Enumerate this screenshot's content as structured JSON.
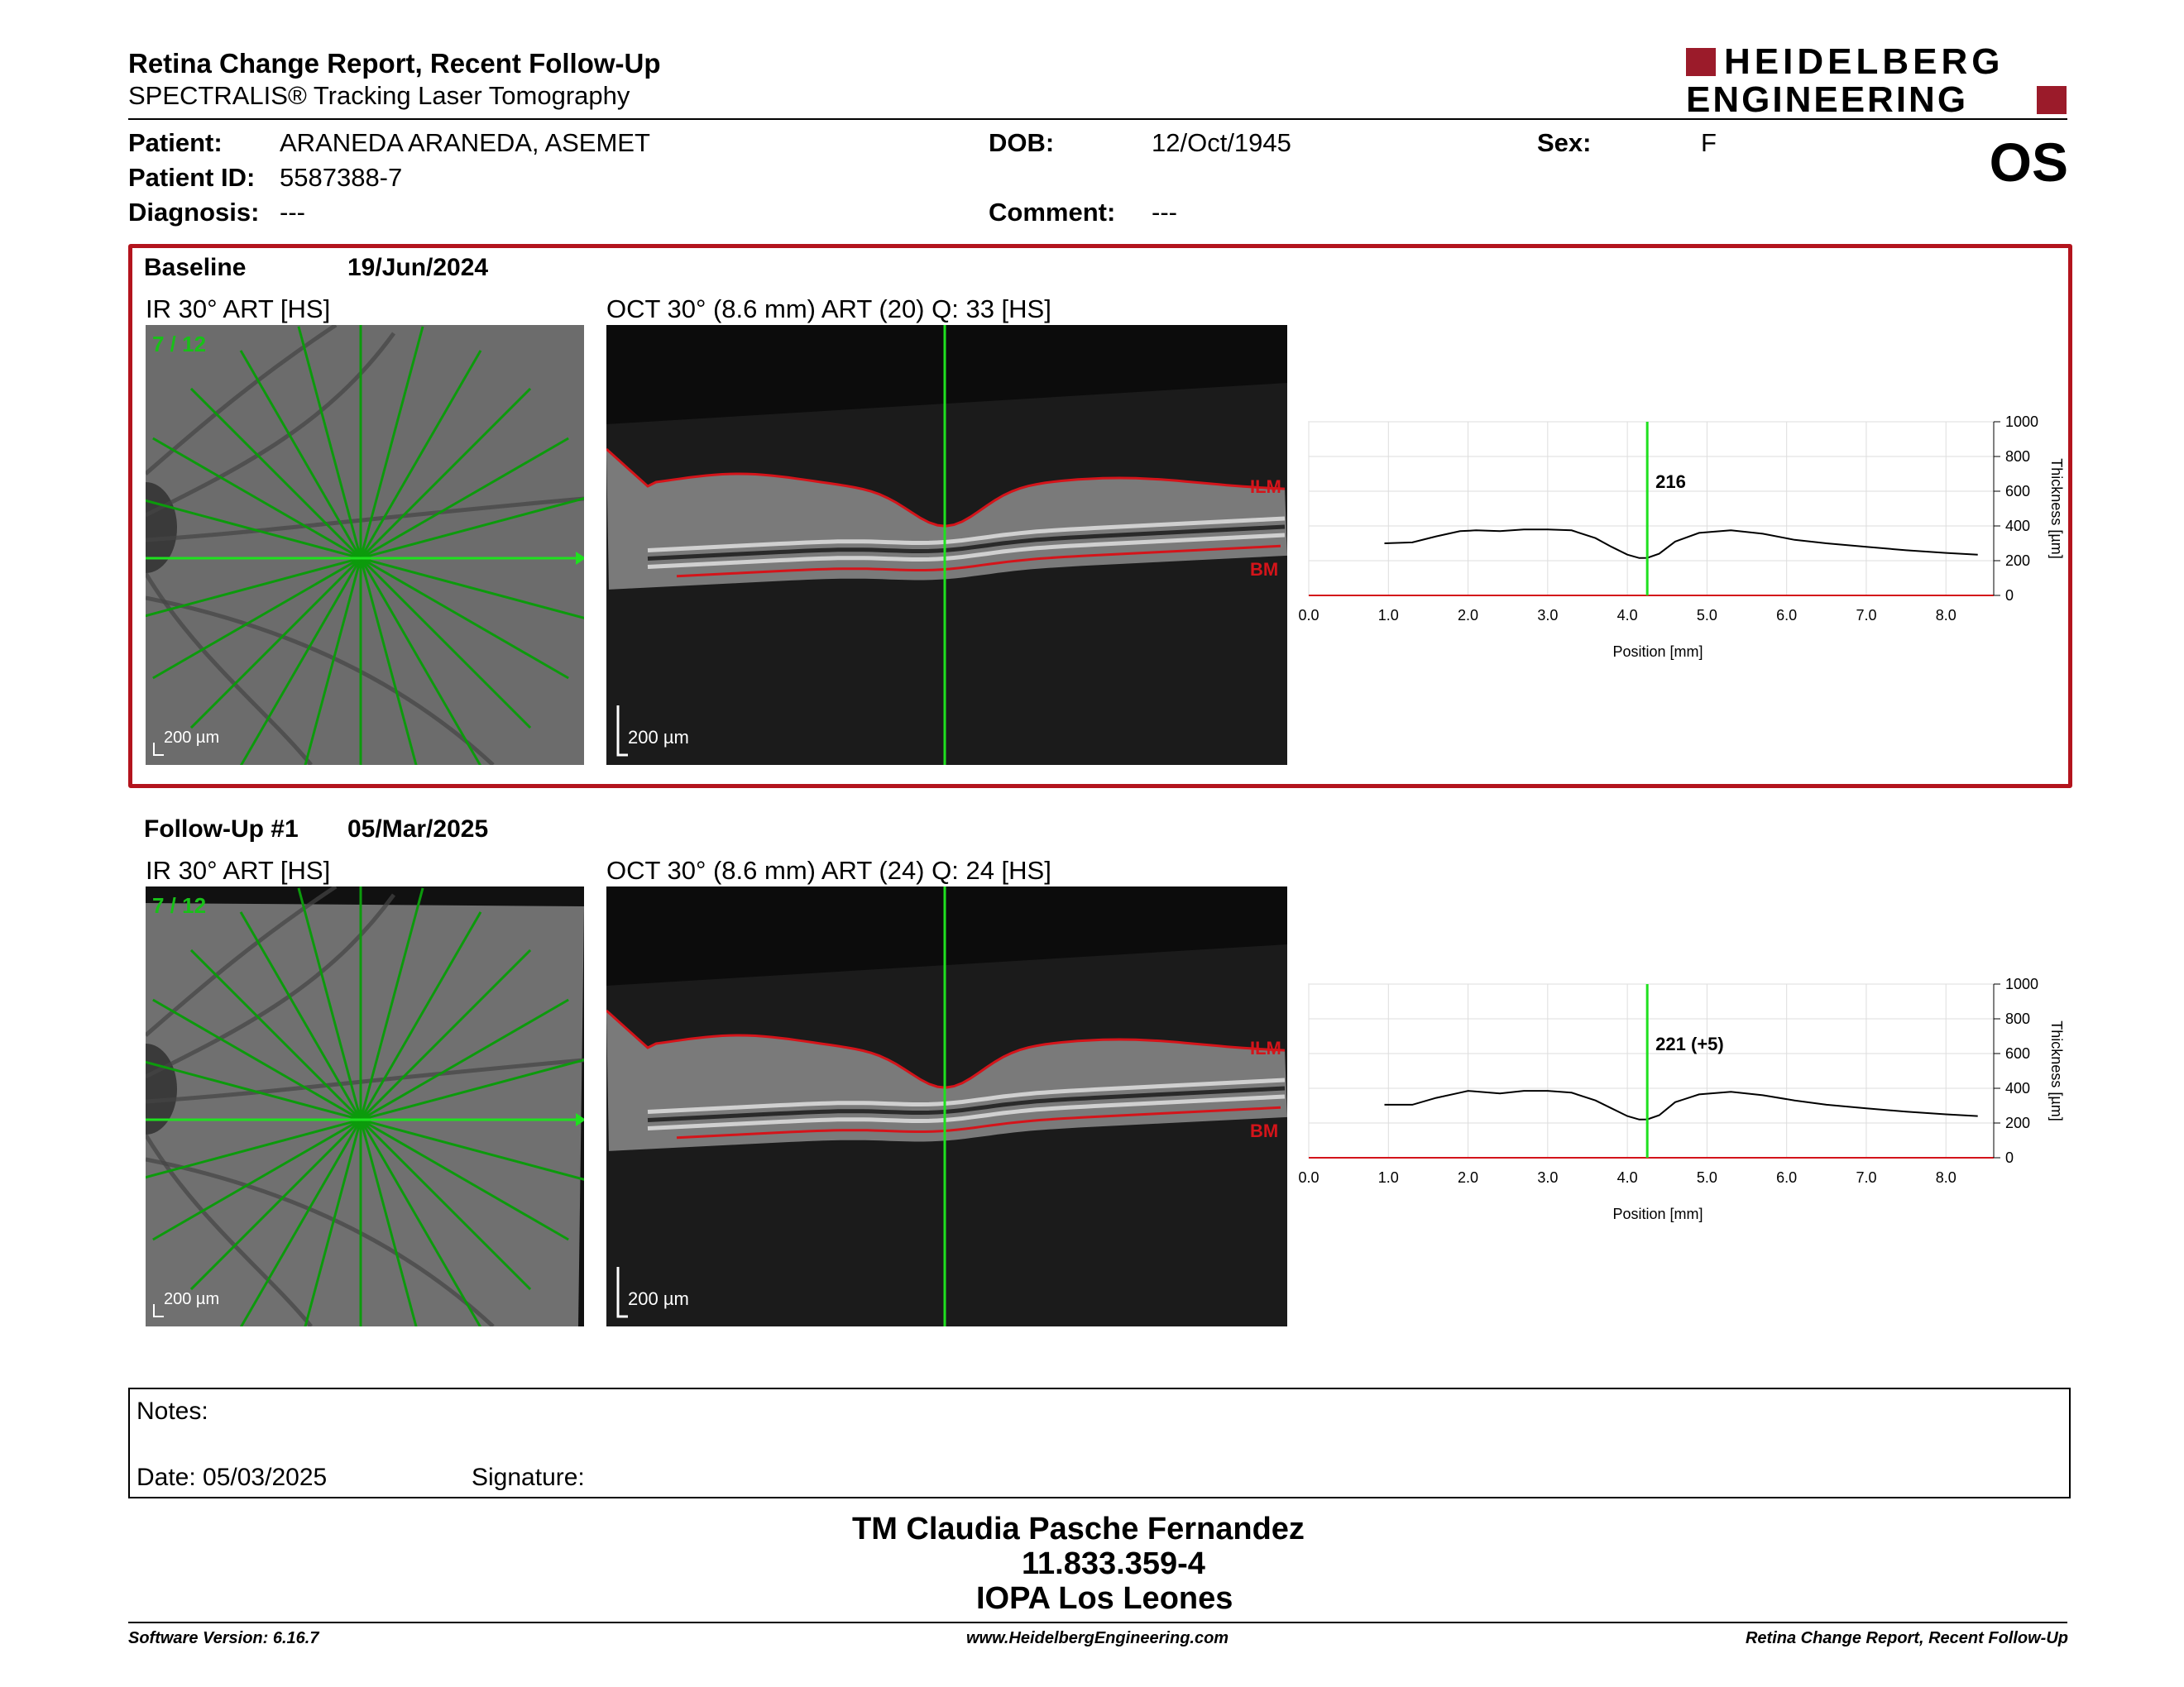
{
  "header": {
    "title": "Retina Change Report, Recent Follow-Up",
    "subtitle": "SPECTRALIS® Tracking Laser Tomography",
    "logo_line1": "HEIDELBERG",
    "logo_line2": "ENGINEERING",
    "brand_color": "#9b1b2a"
  },
  "patient": {
    "patient_label": "Patient:",
    "patient_value": "ARANEDA ARANEDA, ASEMET",
    "id_label": "Patient ID:",
    "id_value": "5587388-7",
    "diagnosis_label": "Diagnosis:",
    "diagnosis_value": "---",
    "dob_label": "DOB:",
    "dob_value": "12/Oct/1945",
    "comment_label": "Comment:",
    "comment_value": "---",
    "sex_label": "Sex:",
    "sex_value": "F",
    "eye": "OS"
  },
  "baseline": {
    "label": "Baseline",
    "date": "19/Jun/2024",
    "ir_title": "IR 30° ART [HS]",
    "ir_counter": "7 / 12",
    "ir_scale": "200 µm",
    "oct_title": "OCT 30° (8.6 mm) ART (20) Q: 33 [HS]",
    "oct_scale": "200 µm",
    "ilm": "ILM",
    "bm": "BM",
    "marker_value": "216"
  },
  "followup": {
    "label": "Follow-Up #1",
    "date": "05/Mar/2025",
    "ir_title": "IR 30° ART [HS]",
    "ir_counter": "7 / 12",
    "ir_scale": "200 µm",
    "oct_title": "OCT 30° (8.6 mm) ART (24) Q: 24 [HS]",
    "oct_scale": "200 µm",
    "ilm": "ILM",
    "bm": "BM",
    "marker_value": "221 (+5)"
  },
  "chart_data": [
    {
      "type": "line",
      "title": "",
      "xlabel": "Position [mm]",
      "ylabel": "Thickness [µm]",
      "xlim": [
        0,
        8.6
      ],
      "ylim": [
        0,
        1000
      ],
      "xticks": [
        "0.0",
        "1.0",
        "2.0",
        "3.0",
        "4.0",
        "5.0",
        "6.0",
        "7.0",
        "8.0"
      ],
      "yticks": [
        "0",
        "200",
        "400",
        "600",
        "800",
        "1000"
      ],
      "marker_x": 4.25,
      "marker_label": "216",
      "grid": true,
      "series": [
        {
          "x": [
            0.95,
            1.3,
            1.6,
            1.9,
            2.1,
            2.4,
            2.7,
            3.0,
            3.3,
            3.6,
            3.8,
            4.0,
            4.15,
            4.25,
            4.4,
            4.6,
            4.9,
            5.3,
            5.7,
            6.1,
            6.5,
            7.0,
            7.5,
            8.0,
            8.4
          ],
          "values": [
            300,
            305,
            340,
            370,
            375,
            370,
            380,
            380,
            375,
            330,
            280,
            235,
            215,
            216,
            240,
            310,
            360,
            375,
            355,
            320,
            300,
            280,
            260,
            245,
            235
          ]
        }
      ]
    },
    {
      "type": "line",
      "title": "",
      "xlabel": "Position [mm]",
      "ylabel": "Thickness [µm]",
      "xlim": [
        0,
        8.6
      ],
      "ylim": [
        0,
        1000
      ],
      "xticks": [
        "0.0",
        "1.0",
        "2.0",
        "3.0",
        "4.0",
        "5.0",
        "6.0",
        "7.0",
        "8.0"
      ],
      "yticks": [
        "0",
        "200",
        "400",
        "600",
        "800",
        "1000"
      ],
      "marker_x": 4.25,
      "marker_label": "221 (+5)",
      "grid": true,
      "series": [
        {
          "x": [
            0.95,
            1.3,
            1.6,
            1.9,
            2.0,
            2.4,
            2.7,
            3.0,
            3.3,
            3.6,
            3.8,
            4.0,
            4.15,
            4.25,
            4.4,
            4.6,
            4.9,
            5.3,
            5.7,
            6.1,
            6.5,
            7.0,
            7.5,
            8.0,
            8.4
          ],
          "values": [
            305,
            305,
            345,
            375,
            385,
            370,
            385,
            385,
            375,
            330,
            285,
            240,
            220,
            221,
            245,
            320,
            365,
            380,
            360,
            330,
            305,
            285,
            265,
            250,
            240
          ]
        }
      ]
    }
  ],
  "notes": {
    "notes_label": "Notes:",
    "date_label": "Date: 05/03/2025",
    "signature_label": "Signature:"
  },
  "signature_block": {
    "name": "TM Claudia Pasche Fernandez",
    "id": "11.833.359-4",
    "org": "IOPA Los Leones"
  },
  "footer": {
    "software": "Software Version: 6.16.7",
    "website": "www.HeidelbergEngineering.com",
    "report": "Retina Change Report, Recent Follow-Up"
  }
}
